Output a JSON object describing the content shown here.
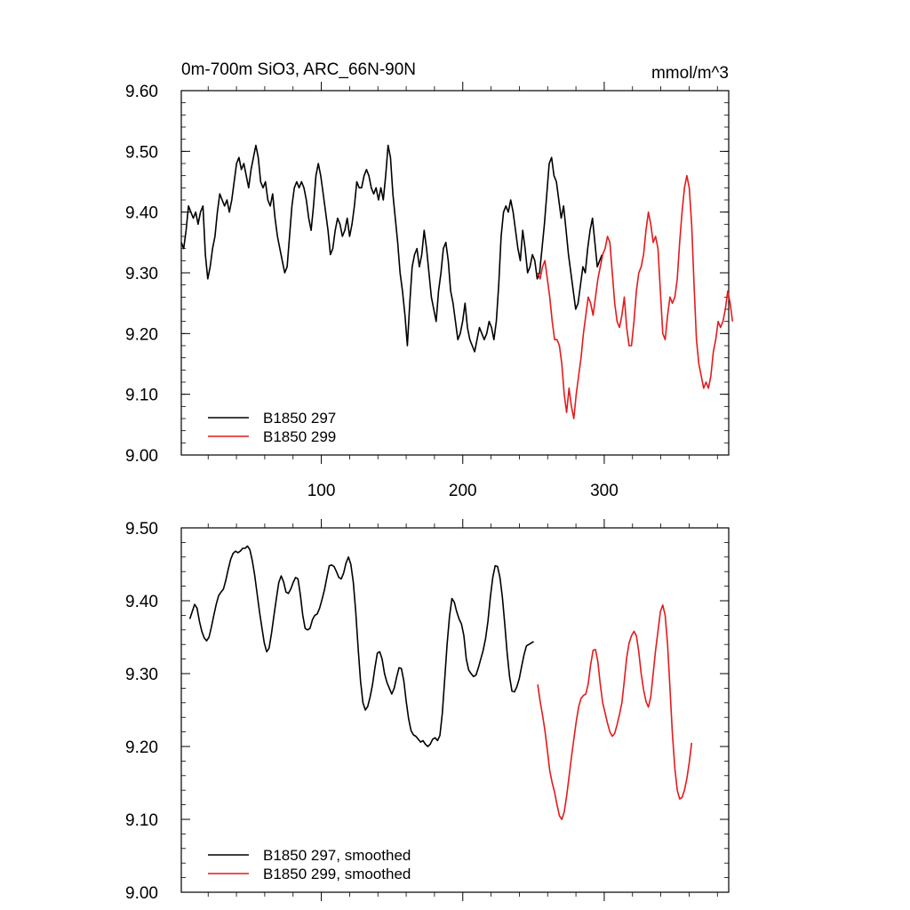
{
  "header": {
    "title": "0m-700m SiO3, ARC_66N-90N",
    "units": "mmol/m^3"
  },
  "chart_data": [
    {
      "type": "line",
      "panel": "top",
      "xlim": [
        1,
        388
      ],
      "ylim": [
        9.0,
        9.6
      ],
      "xticks": [
        100,
        200,
        300
      ],
      "xtick_labels": [
        "100",
        "200",
        "300"
      ],
      "yticks": [
        9.0,
        9.1,
        9.2,
        9.3,
        9.4,
        9.5,
        9.6
      ],
      "ytick_labels": [
        "9.00",
        "9.10",
        "9.20",
        "9.30",
        "9.40",
        "9.50",
        "9.60"
      ],
      "legend_position": "bottom-left",
      "series": [
        {
          "name": "B1850 297",
          "color": "#000000",
          "x_start": 1,
          "values": [
            9.35,
            9.34,
            9.37,
            9.41,
            9.4,
            9.39,
            9.4,
            9.38,
            9.4,
            9.41,
            9.33,
            9.29,
            9.31,
            9.34,
            9.36,
            9.4,
            9.43,
            9.42,
            9.41,
            9.42,
            9.4,
            9.42,
            9.45,
            9.48,
            9.49,
            9.47,
            9.48,
            9.46,
            9.44,
            9.47,
            9.49,
            9.51,
            9.49,
            9.45,
            9.44,
            9.45,
            9.42,
            9.41,
            9.43,
            9.39,
            9.36,
            9.34,
            9.32,
            9.3,
            9.31,
            9.36,
            9.41,
            9.44,
            9.45,
            9.44,
            9.45,
            9.44,
            9.42,
            9.39,
            9.37,
            9.41,
            9.46,
            9.48,
            9.46,
            9.43,
            9.4,
            9.37,
            9.33,
            9.34,
            9.37,
            9.39,
            9.38,
            9.36,
            9.37,
            9.39,
            9.36,
            9.38,
            9.41,
            9.45,
            9.44,
            9.44,
            9.46,
            9.47,
            9.46,
            9.44,
            9.43,
            9.44,
            9.42,
            9.44,
            9.42,
            9.46,
            9.51,
            9.49,
            9.43,
            9.39,
            9.35,
            9.3,
            9.27,
            9.23,
            9.18,
            9.25,
            9.31,
            9.33,
            9.34,
            9.31,
            9.33,
            9.37,
            9.34,
            9.3,
            9.26,
            9.24,
            9.22,
            9.27,
            9.3,
            9.34,
            9.35,
            9.32,
            9.27,
            9.25,
            9.22,
            9.19,
            9.2,
            9.22,
            9.25,
            9.21,
            9.19,
            9.18,
            9.17,
            9.19,
            9.21,
            9.2,
            9.19,
            9.2,
            9.22,
            9.21,
            9.19,
            9.22,
            9.28,
            9.36,
            9.4,
            9.41,
            9.4,
            9.42,
            9.4,
            9.37,
            9.34,
            9.32,
            9.37,
            9.34,
            9.3,
            9.31,
            9.33,
            9.32,
            9.29,
            9.3,
            9.34,
            9.38,
            9.43,
            9.48,
            9.49,
            9.46,
            9.45,
            9.42,
            9.39,
            9.41,
            9.37,
            9.33,
            9.3,
            9.27,
            9.24,
            9.25,
            9.28,
            9.31,
            9.3,
            9.34,
            9.37,
            9.39,
            9.35,
            9.31,
            9.32,
            9.33
          ]
        },
        {
          "name": "B1850 299",
          "color": "#e41a1c",
          "x_start": 253,
          "values": [
            9.3,
            9.29,
            9.31,
            9.32,
            9.29,
            9.26,
            9.22,
            9.19,
            9.19,
            9.18,
            9.15,
            9.1,
            9.07,
            9.11,
            9.08,
            9.06,
            9.1,
            9.13,
            9.16,
            9.2,
            9.23,
            9.26,
            9.25,
            9.23,
            9.26,
            9.29,
            9.31,
            9.33,
            9.34,
            9.36,
            9.35,
            9.3,
            9.25,
            9.22,
            9.21,
            9.23,
            9.26,
            9.21,
            9.18,
            9.18,
            9.22,
            9.27,
            9.3,
            9.31,
            9.33,
            9.37,
            9.4,
            9.38,
            9.35,
            9.36,
            9.34,
            9.27,
            9.2,
            9.19,
            9.23,
            9.26,
            9.25,
            9.26,
            9.29,
            9.35,
            9.4,
            9.44,
            9.46,
            9.44,
            9.38,
            9.28,
            9.19,
            9.15,
            9.13,
            9.11,
            9.12,
            9.11,
            9.13,
            9.17,
            9.19,
            9.22,
            9.21,
            9.22,
            9.24,
            9.27,
            9.25,
            9.22
          ]
        }
      ]
    },
    {
      "type": "line",
      "panel": "bottom",
      "xlim": [
        1,
        388
      ],
      "ylim": [
        9.0,
        9.5
      ],
      "xticks": [
        100,
        200,
        300
      ],
      "yticks": [
        9.0,
        9.1,
        9.2,
        9.3,
        9.4,
        9.5
      ],
      "ytick_labels": [
        "9.00",
        "9.10",
        "9.20",
        "9.30",
        "9.40",
        "9.50"
      ],
      "legend_position": "bottom-left",
      "series": [
        {
          "name": "B1850 297, smoothed",
          "color": "#000000",
          "x_start": 7,
          "values": [
            9.375,
            9.385,
            9.395,
            9.39,
            9.372,
            9.358,
            9.349,
            9.345,
            9.35,
            9.364,
            9.38,
            9.395,
            9.407,
            9.412,
            9.416,
            9.428,
            9.443,
            9.457,
            9.465,
            9.468,
            9.466,
            9.468,
            9.472,
            9.472,
            9.475,
            9.47,
            9.455,
            9.435,
            9.41,
            9.385,
            9.363,
            9.342,
            9.33,
            9.335,
            9.356,
            9.38,
            9.403,
            9.425,
            9.434,
            9.426,
            9.412,
            9.41,
            9.416,
            9.425,
            9.432,
            9.43,
            9.408,
            9.38,
            9.362,
            9.36,
            9.362,
            9.374,
            9.38,
            9.382,
            9.39,
            9.402,
            9.415,
            9.432,
            9.448,
            9.449,
            9.447,
            9.44,
            9.432,
            9.43,
            9.438,
            9.452,
            9.46,
            9.45,
            9.425,
            9.385,
            9.335,
            9.29,
            9.26,
            9.25,
            9.255,
            9.268,
            9.285,
            9.308,
            9.328,
            9.33,
            9.32,
            9.3,
            9.288,
            9.28,
            9.272,
            9.28,
            9.295,
            9.308,
            9.307,
            9.29,
            9.262,
            9.238,
            9.222,
            9.216,
            9.214,
            9.21,
            9.206,
            9.208,
            9.203,
            9.2,
            9.203,
            9.21,
            9.212,
            9.208,
            9.215,
            9.245,
            9.292,
            9.34,
            9.378,
            9.403,
            9.398,
            9.385,
            9.375,
            9.368,
            9.352,
            9.32,
            9.305,
            9.3,
            9.296,
            9.298,
            9.308,
            9.32,
            9.332,
            9.348,
            9.372,
            9.405,
            9.432,
            9.448,
            9.447,
            9.432,
            9.405,
            9.368,
            9.328,
            9.296,
            9.276,
            9.275,
            9.282,
            9.293,
            9.31,
            9.326,
            9.338,
            9.34,
            9.342,
            9.344
          ]
        },
        {
          "name": "B1850 299, smoothed",
          "color": "#e41a1c",
          "x_start": 253,
          "values": [
            9.285,
            9.262,
            9.243,
            9.222,
            9.195,
            9.167,
            9.15,
            9.137,
            9.12,
            9.105,
            9.1,
            9.11,
            9.132,
            9.158,
            9.185,
            9.21,
            9.234,
            9.254,
            9.266,
            9.27,
            9.272,
            9.286,
            9.312,
            9.332,
            9.333,
            9.316,
            9.285,
            9.26,
            9.246,
            9.232,
            9.22,
            9.214,
            9.218,
            9.23,
            9.244,
            9.26,
            9.29,
            9.322,
            9.342,
            9.352,
            9.358,
            9.352,
            9.33,
            9.3,
            9.278,
            9.262,
            9.254,
            9.268,
            9.3,
            9.332,
            9.358,
            9.385,
            9.394,
            9.38,
            9.34,
            9.28,
            9.218,
            9.17,
            9.14,
            9.128,
            9.13,
            9.14,
            9.156,
            9.178,
            9.205
          ]
        }
      ]
    }
  ]
}
